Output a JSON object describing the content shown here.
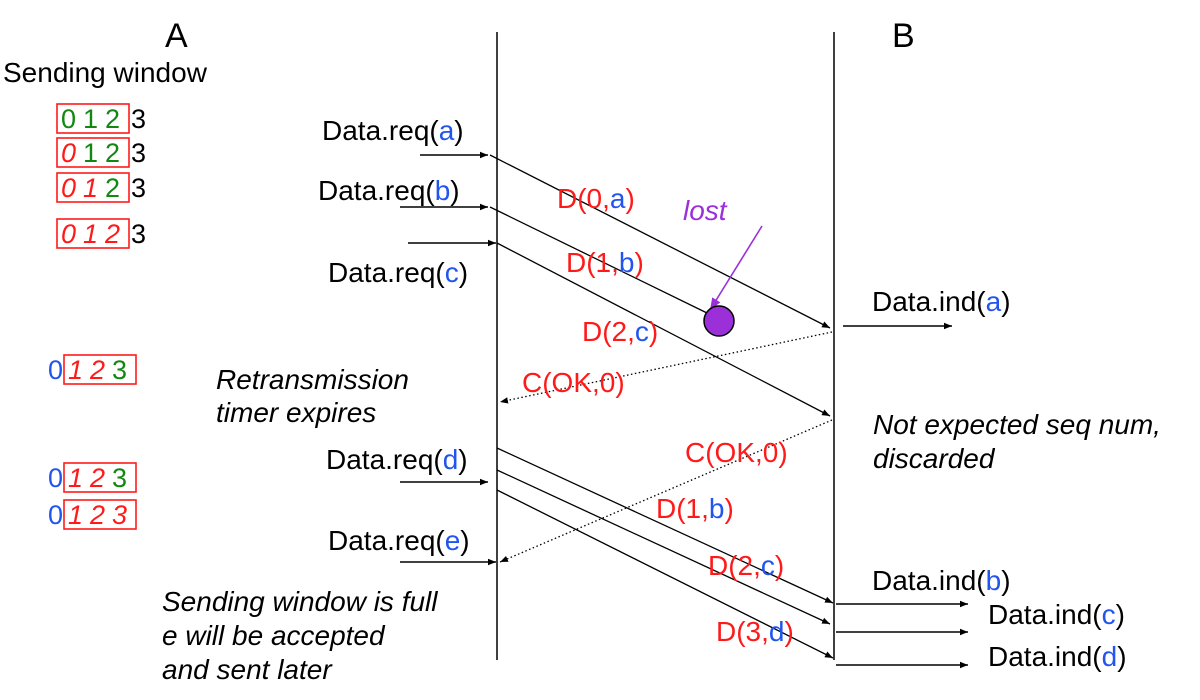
{
  "colors": {
    "red": "#ff1a1a",
    "blue": "#2255ee",
    "green": "#118811",
    "purple": "#9b30d9",
    "black": "#000000"
  },
  "hosts": {
    "a": "A",
    "b": "B"
  },
  "window_title": "Sending window",
  "windows": [
    {
      "before": "",
      "digits": [
        {
          "d": "0",
          "color": "green",
          "italic": false,
          "boxed": true
        },
        {
          "d": "1",
          "color": "green",
          "italic": false,
          "boxed": true
        },
        {
          "d": "2",
          "color": "green",
          "italic": false,
          "boxed": true
        },
        {
          "d": "3",
          "color": "black",
          "italic": false,
          "boxed": false
        }
      ]
    },
    {
      "before": "",
      "digits": [
        {
          "d": "0",
          "color": "red",
          "italic": true,
          "boxed": true
        },
        {
          "d": "1",
          "color": "green",
          "italic": false,
          "boxed": true
        },
        {
          "d": "2",
          "color": "green",
          "italic": false,
          "boxed": true
        },
        {
          "d": "3",
          "color": "black",
          "italic": false,
          "boxed": false
        }
      ]
    },
    {
      "before": "",
      "digits": [
        {
          "d": "0",
          "color": "red",
          "italic": true,
          "boxed": true
        },
        {
          "d": "1",
          "color": "red",
          "italic": true,
          "boxed": true
        },
        {
          "d": "2",
          "color": "green",
          "italic": false,
          "boxed": true
        },
        {
          "d": "3",
          "color": "black",
          "italic": false,
          "boxed": false
        }
      ]
    },
    {
      "before": "",
      "digits": [
        {
          "d": "0",
          "color": "red",
          "italic": true,
          "boxed": true
        },
        {
          "d": "1",
          "color": "red",
          "italic": true,
          "boxed": true
        },
        {
          "d": "2",
          "color": "red",
          "italic": true,
          "boxed": true
        },
        {
          "d": "3",
          "color": "black",
          "italic": false,
          "boxed": false
        }
      ]
    },
    {
      "before": "0",
      "digits": [
        {
          "d": "1",
          "color": "red",
          "italic": true,
          "boxed": true
        },
        {
          "d": "2",
          "color": "red",
          "italic": true,
          "boxed": true
        },
        {
          "d": "3",
          "color": "green",
          "italic": false,
          "boxed": true
        }
      ]
    },
    {
      "before": "0",
      "digits": [
        {
          "d": "1",
          "color": "red",
          "italic": true,
          "boxed": true
        },
        {
          "d": "2",
          "color": "red",
          "italic": true,
          "boxed": true
        },
        {
          "d": "3",
          "color": "green",
          "italic": false,
          "boxed": true
        }
      ]
    },
    {
      "before": "0",
      "digits": [
        {
          "d": "1",
          "color": "red",
          "italic": true,
          "boxed": true
        },
        {
          "d": "2",
          "color": "red",
          "italic": true,
          "boxed": true
        },
        {
          "d": "3",
          "color": "red",
          "italic": true,
          "boxed": true
        }
      ]
    }
  ],
  "requests": [
    {
      "prefix": "Data.req(",
      "arg": "a",
      "suffix": ")"
    },
    {
      "prefix": "Data.req(",
      "arg": "b",
      "suffix": ")"
    },
    {
      "prefix": "Data.req(",
      "arg": "c",
      "suffix": ")"
    },
    {
      "prefix": "Data.req(",
      "arg": "d",
      "suffix": ")"
    },
    {
      "prefix": "Data.req(",
      "arg": "e",
      "suffix": ")"
    }
  ],
  "frames": [
    {
      "pre": "D(0,",
      "arg": "a",
      "post": ")"
    },
    {
      "pre": "D(1,",
      "arg": "b",
      "post": ")"
    },
    {
      "pre": "D(2,",
      "arg": "c",
      "post": ")"
    },
    {
      "pre": "D(1,",
      "arg": "b",
      "post": ")"
    },
    {
      "pre": "D(2,",
      "arg": "c",
      "post": ")"
    },
    {
      "pre": "D(3,",
      "arg": "d",
      "post": ")"
    }
  ],
  "acks": [
    "C(OK,0)",
    "C(OK,0)"
  ],
  "indications": [
    {
      "prefix": "Data.ind(",
      "arg": "a",
      "suffix": ")"
    },
    {
      "prefix": "Data.ind(",
      "arg": "b",
      "suffix": ")"
    },
    {
      "prefix": "Data.ind(",
      "arg": "c",
      "suffix": ")"
    },
    {
      "prefix": "Data.ind(",
      "arg": "d",
      "suffix": ")"
    }
  ],
  "lost_label": "lost",
  "timer_note": [
    "Retransmission",
    "timer expires"
  ],
  "discard_note": [
    "Not expected seq num,",
    "discarded"
  ],
  "full_note": [
    "Sending window is full",
    "e will be accepted",
    "and sent later"
  ]
}
